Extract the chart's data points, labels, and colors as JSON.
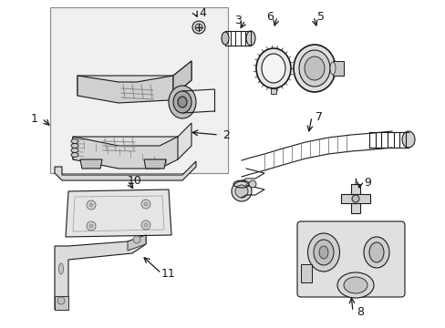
{
  "bg_color": "#ffffff",
  "fig_width": 4.89,
  "fig_height": 3.6,
  "dpi": 100,
  "line_color": "#1a1a1a",
  "box_color": "#efefef",
  "part_fill": "#e8e8e8",
  "dark": "#111111"
}
